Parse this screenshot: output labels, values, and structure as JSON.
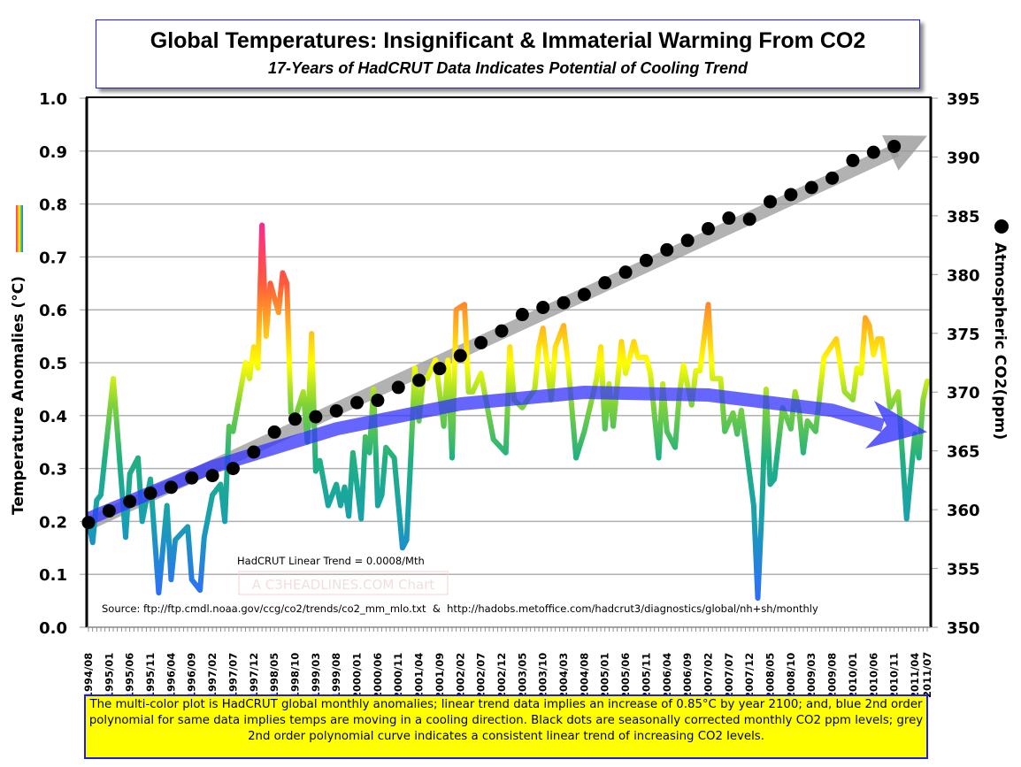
{
  "header": {
    "title": "Global Temperatures: Insignificant & Immaterial Warming From CO2",
    "subtitle": "17-Years of HadCRUT Data Indicates Potential of Cooling Trend"
  },
  "annotations": {
    "trend_label": "HadCRUT Linear Trend = 0.0008/Mth",
    "watermark": "A C3HEADLINES.COM Chart",
    "source": "Source: ftp://ftp.cmdl.noaa.gov/ccg/co2/trends/co2_mm_mlo.txt  &  http://hadobs.metoffice.com/hadcrut3/diagnostics/global/nh+sh/monthly",
    "note": "The multi-color plot is HadCRUT global monthly anomalies; linear trend data implies an increase of 0.85°C by year 2100; and, blue 2nd order polynomial for same data implies temps are moving in a cooling direction. Black dots are seasonally corrected monthly CO2 ppm levels; grey 2nd order polynomial curve indicates a consistent linear trend of increasing CO2 levels."
  },
  "chart_data": {
    "type": "line",
    "title": "Global Temperatures: Insignificant & Immaterial Warming From CO2",
    "subtitle": "17-Years of HadCRUT Data Indicates Potential of Cooling Trend",
    "ylabel": "Temperature Anomalies (°C)",
    "y2label": "Atmospheric CO2(ppm)",
    "ylim": [
      0.0,
      1.0
    ],
    "y2lim": [
      350,
      395
    ],
    "yticks": [
      "0.0",
      "0.1",
      "0.2",
      "0.3",
      "0.4",
      "0.5",
      "0.6",
      "0.7",
      "0.8",
      "0.9",
      "1.0"
    ],
    "y2ticks": [
      "350",
      "355",
      "360",
      "365",
      "370",
      "375",
      "380",
      "385",
      "390",
      "395"
    ],
    "xlim": [
      "1994/08",
      "2011/07"
    ],
    "xticks": [
      "1994/08",
      "1995/01",
      "1995/06",
      "1995/11",
      "1996/04",
      "1996/09",
      "1997/02",
      "1997/07",
      "1997/12",
      "1998/05",
      "1998/10",
      "1999/03",
      "1999/08",
      "2000/01",
      "2000/06",
      "2000/11",
      "2001/04",
      "2001/09",
      "2002/02",
      "2002/07",
      "2002/12",
      "2003/05",
      "2003/10",
      "2004/03",
      "2004/08",
      "2005/01",
      "2005/06",
      "2005/11",
      "2006/04",
      "2006/09",
      "2007/02",
      "2007/07",
      "2007/12",
      "2008/05",
      "2008/10",
      "2009/03",
      "2009/08",
      "2010/01",
      "2010/06",
      "2010/11",
      "2011/04",
      "2011/07"
    ],
    "grid": true,
    "colors": {
      "temp_high": "#ff2a8a",
      "temp_mid": "#ffff00",
      "temp_low": "#2a6fff",
      "poly_trend": "#3333ff",
      "co2_dots": "#000000",
      "co2_trend": "#999999",
      "frame": "#1a1aff",
      "note_bg": "#ffff00"
    },
    "series": [
      {
        "name": "HadCRUT global monthly anomalies",
        "axis": "left",
        "style": "multi-color line",
        "points": [
          [
            "1994/08",
            0.2
          ],
          [
            "1994/09",
            0.16
          ],
          [
            "1994/10",
            0.24
          ],
          [
            "1994/11",
            0.25
          ],
          [
            "1995/02",
            0.47
          ],
          [
            "1995/05",
            0.17
          ],
          [
            "1995/06",
            0.29
          ],
          [
            "1995/08",
            0.32
          ],
          [
            "1995/09",
            0.2
          ],
          [
            "1995/11",
            0.28
          ],
          [
            "1996/01",
            0.065
          ],
          [
            "1996/03",
            0.23
          ],
          [
            "1996/04",
            0.09
          ],
          [
            "1996/05",
            0.165
          ],
          [
            "1996/08",
            0.19
          ],
          [
            "1996/09",
            0.09
          ],
          [
            "1996/11",
            0.07
          ],
          [
            "1996/12",
            0.17
          ],
          [
            "1997/02",
            0.25
          ],
          [
            "1997/04",
            0.27
          ],
          [
            "1997/05",
            0.2
          ],
          [
            "1997/06",
            0.38
          ],
          [
            "1997/07",
            0.37
          ],
          [
            "1997/10",
            0.5
          ],
          [
            "1997/11",
            0.47
          ],
          [
            "1997/12",
            0.53
          ],
          [
            "1998/01",
            0.49
          ],
          [
            "1998/02",
            0.76
          ],
          [
            "1998/03",
            0.55
          ],
          [
            "1998/04",
            0.65
          ],
          [
            "1998/06",
            0.595
          ],
          [
            "1998/07",
            0.67
          ],
          [
            "1998/08",
            0.65
          ],
          [
            "1998/09",
            0.405
          ],
          [
            "1998/10",
            0.395
          ],
          [
            "1998/12",
            0.445
          ],
          [
            "1999/01",
            0.35
          ],
          [
            "1999/02",
            0.555
          ],
          [
            "1999/03",
            0.295
          ],
          [
            "1999/04",
            0.315
          ],
          [
            "1999/06",
            0.23
          ],
          [
            "1999/08",
            0.27
          ],
          [
            "1999/09",
            0.23
          ],
          [
            "1999/10",
            0.265
          ],
          [
            "1999/11",
            0.21
          ],
          [
            "1999/12",
            0.33
          ],
          [
            "2000/02",
            0.205
          ],
          [
            "2000/03",
            0.36
          ],
          [
            "2000/04",
            0.33
          ],
          [
            "2000/05",
            0.45
          ],
          [
            "2000/06",
            0.23
          ],
          [
            "2000/07",
            0.25
          ],
          [
            "2000/08",
            0.34
          ],
          [
            "2000/10",
            0.32
          ],
          [
            "2000/12",
            0.15
          ],
          [
            "2001/01",
            0.165
          ],
          [
            "2001/02",
            0.32
          ],
          [
            "2001/03",
            0.49
          ],
          [
            "2001/04",
            0.39
          ],
          [
            "2001/05",
            0.47
          ],
          [
            "2001/06",
            0.47
          ],
          [
            "2001/08",
            0.505
          ],
          [
            "2001/10",
            0.38
          ],
          [
            "2001/11",
            0.505
          ],
          [
            "2001/12",
            0.32
          ],
          [
            "2002/01",
            0.6
          ],
          [
            "2002/03",
            0.61
          ],
          [
            "2002/04",
            0.445
          ],
          [
            "2002/05",
            0.445
          ],
          [
            "2002/07",
            0.48
          ],
          [
            "2002/10",
            0.355
          ],
          [
            "2003/01",
            0.33
          ],
          [
            "2003/02",
            0.53
          ],
          [
            "2003/03",
            0.43
          ],
          [
            "2003/05",
            0.415
          ],
          [
            "2003/08",
            0.45
          ],
          [
            "2003/09",
            0.53
          ],
          [
            "2003/10",
            0.565
          ],
          [
            "2003/12",
            0.43
          ],
          [
            "2004/01",
            0.53
          ],
          [
            "2004/03",
            0.57
          ],
          [
            "2004/04",
            0.505
          ],
          [
            "2004/06",
            0.32
          ],
          [
            "2004/08",
            0.37
          ],
          [
            "2004/11",
            0.47
          ],
          [
            "2004/12",
            0.53
          ],
          [
            "2005/01",
            0.375
          ],
          [
            "2005/02",
            0.46
          ],
          [
            "2005/03",
            0.38
          ],
          [
            "2005/05",
            0.54
          ],
          [
            "2005/06",
            0.48
          ],
          [
            "2005/08",
            0.54
          ],
          [
            "2005/09",
            0.51
          ],
          [
            "2005/11",
            0.51
          ],
          [
            "2005/12",
            0.48
          ],
          [
            "2006/02",
            0.32
          ],
          [
            "2006/03",
            0.46
          ],
          [
            "2006/04",
            0.37
          ],
          [
            "2006/06",
            0.34
          ],
          [
            "2006/07",
            0.44
          ],
          [
            "2006/08",
            0.495
          ],
          [
            "2006/10",
            0.42
          ],
          [
            "2006/11",
            0.485
          ],
          [
            "2006/12",
            0.485
          ],
          [
            "2007/02",
            0.61
          ],
          [
            "2007/03",
            0.47
          ],
          [
            "2007/05",
            0.47
          ],
          [
            "2007/06",
            0.37
          ],
          [
            "2007/08",
            0.405
          ],
          [
            "2007/09",
            0.365
          ],
          [
            "2007/10",
            0.41
          ],
          [
            "2008/01",
            0.23
          ],
          [
            "2008/02",
            0.055
          ],
          [
            "2008/03",
            0.225
          ],
          [
            "2008/04",
            0.45
          ],
          [
            "2008/05",
            0.27
          ],
          [
            "2008/06",
            0.28
          ],
          [
            "2008/08",
            0.415
          ],
          [
            "2008/10",
            0.375
          ],
          [
            "2008/11",
            0.445
          ],
          [
            "2008/12",
            0.41
          ],
          [
            "2009/01",
            0.33
          ],
          [
            "2009/02",
            0.39
          ],
          [
            "2009/04",
            0.37
          ],
          [
            "2009/06",
            0.51
          ],
          [
            "2009/09",
            0.545
          ],
          [
            "2009/11",
            0.445
          ],
          [
            "2010/01",
            0.43
          ],
          [
            "2010/02",
            0.49
          ],
          [
            "2010/03",
            0.48
          ],
          [
            "2010/04",
            0.585
          ],
          [
            "2010/05",
            0.57
          ],
          [
            "2010/06",
            0.515
          ],
          [
            "2010/07",
            0.545
          ],
          [
            "2010/08",
            0.545
          ],
          [
            "2010/10",
            0.415
          ],
          [
            "2010/12",
            0.445
          ],
          [
            "2011/02",
            0.205
          ],
          [
            "2011/04",
            0.365
          ],
          [
            "2011/05",
            0.32
          ],
          [
            "2011/06",
            0.43
          ],
          [
            "2011/07",
            0.465
          ]
        ]
      },
      {
        "name": "Atmospheric CO2(ppm)",
        "axis": "right",
        "style": "dots",
        "points": [
          [
            "1994/08",
            358.9
          ],
          [
            "1995/01",
            359.9
          ],
          [
            "1995/06",
            360.7
          ],
          [
            "1995/11",
            361.4
          ],
          [
            "1996/04",
            361.9
          ],
          [
            "1996/09",
            362.7
          ],
          [
            "1997/02",
            362.9
          ],
          [
            "1997/07",
            363.5
          ],
          [
            "1997/12",
            364.9
          ],
          [
            "1998/05",
            366.6
          ],
          [
            "1998/10",
            367.7
          ],
          [
            "1999/03",
            367.9
          ],
          [
            "1999/08",
            368.4
          ],
          [
            "2000/01",
            369.1
          ],
          [
            "2000/06",
            369.3
          ],
          [
            "2000/11",
            370.4
          ],
          [
            "2001/04",
            371.0
          ],
          [
            "2001/09",
            372.0
          ],
          [
            "2002/02",
            373.1
          ],
          [
            "2002/07",
            374.2
          ],
          [
            "2002/12",
            375.2
          ],
          [
            "2003/05",
            376.6
          ],
          [
            "2003/10",
            377.2
          ],
          [
            "2004/03",
            377.6
          ],
          [
            "2004/08",
            378.3
          ],
          [
            "2005/01",
            379.3
          ],
          [
            "2005/06",
            380.2
          ],
          [
            "2005/11",
            381.2
          ],
          [
            "2006/04",
            382.1
          ],
          [
            "2006/09",
            382.9
          ],
          [
            "2007/02",
            383.9
          ],
          [
            "2007/07",
            384.8
          ],
          [
            "2007/12",
            384.7
          ],
          [
            "2008/05",
            386.2
          ],
          [
            "2008/10",
            386.8
          ],
          [
            "2009/03",
            387.4
          ],
          [
            "2009/08",
            388.2
          ],
          [
            "2010/01",
            389.7
          ],
          [
            "2010/06",
            390.4
          ],
          [
            "2010/11",
            390.9
          ]
        ]
      },
      {
        "axis": "left",
        "style": "blue polynomial trend arrow",
        "points": [
          [
            "1994/08",
            0.205
          ],
          [
            "1997/02",
            0.303
          ],
          [
            "1999/08",
            0.375
          ],
          [
            "2002/02",
            0.422
          ],
          [
            "2004/08",
            0.444
          ],
          [
            "2007/02",
            0.439
          ],
          [
            "2009/08",
            0.41
          ],
          [
            "2011/07",
            0.369
          ]
        ]
      },
      {
        "axis": "right",
        "style": "grey trend arrow",
        "points": [
          [
            "1994/08",
            358.8
          ],
          [
            "2011/07",
            391.8
          ]
        ]
      }
    ]
  }
}
